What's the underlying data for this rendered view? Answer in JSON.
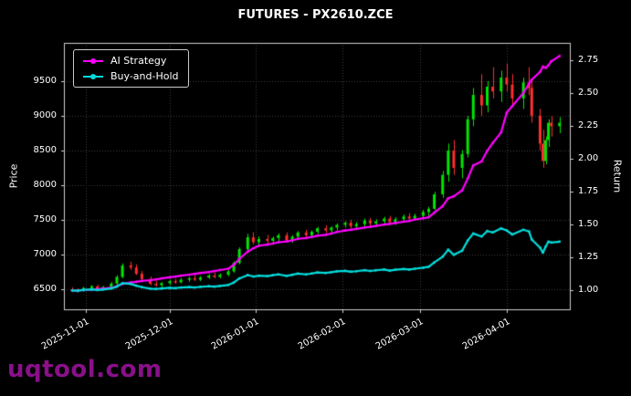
{
  "watermark": "uqtool.com",
  "chart_data": {
    "type": "candlestick+line",
    "title": "FUTURES - PX2610.ZCE",
    "ylabel_left": "Price",
    "ylabel_right": "Return",
    "grid": true,
    "legend_position": "upper-left",
    "x_tick_labels": [
      "2025-11-01",
      "2025-12-01",
      "2026-01-01",
      "2026-02-01",
      "2026-03-01",
      "2026-04-01"
    ],
    "price_ticks": [
      6500,
      7000,
      7500,
      8000,
      8500,
      9000,
      9500
    ],
    "return_ticks": [
      1.0,
      1.25,
      1.5,
      1.75,
      2.0,
      2.25,
      2.5,
      2.75
    ],
    "price_axis_range": [
      6200,
      10050
    ],
    "return_axis_range": [
      0.85,
      2.88
    ],
    "x_domain": [
      "2025-10-24",
      "2026-04-24"
    ],
    "colors": {
      "up": "#00e600",
      "down": "#ff2e2e",
      "ai": "#ff00ff",
      "bh": "#00dddd",
      "grid": "#3c3c3c",
      "spine": "#cfcfcf",
      "text": "#ffffff",
      "background": "#000000",
      "watermark": "#8a108a"
    },
    "candles": [
      [
        "2025-10-27",
        6500,
        6530,
        6470,
        6490
      ],
      [
        "2025-10-29",
        6490,
        6515,
        6455,
        6480
      ],
      [
        "2025-10-31",
        6480,
        6535,
        6465,
        6520
      ],
      [
        "2025-11-03",
        6520,
        6560,
        6495,
        6545
      ],
      [
        "2025-11-05",
        6545,
        6565,
        6490,
        6510
      ],
      [
        "2025-11-07",
        6510,
        6550,
        6495,
        6535
      ],
      [
        "2025-11-10",
        6535,
        6605,
        6520,
        6585
      ],
      [
        "2025-11-12",
        6585,
        6705,
        6565,
        6680
      ],
      [
        "2025-11-14",
        6680,
        6875,
        6660,
        6845
      ],
      [
        "2025-11-17",
        6845,
        6900,
        6780,
        6815
      ],
      [
        "2025-11-19",
        6815,
        6860,
        6705,
        6725
      ],
      [
        "2025-11-21",
        6725,
        6765,
        6625,
        6650
      ],
      [
        "2025-11-24",
        6650,
        6685,
        6560,
        6580
      ],
      [
        "2025-11-26",
        6580,
        6620,
        6540,
        6560
      ],
      [
        "2025-11-28",
        6560,
        6605,
        6530,
        6590
      ],
      [
        "2025-12-01",
        6590,
        6640,
        6560,
        6620
      ],
      [
        "2025-12-03",
        6620,
        6650,
        6580,
        6600
      ],
      [
        "2025-12-05",
        6600,
        6660,
        6590,
        6640
      ],
      [
        "2025-12-08",
        6640,
        6680,
        6610,
        6660
      ],
      [
        "2025-12-10",
        6660,
        6700,
        6620,
        6640
      ],
      [
        "2025-12-12",
        6640,
        6690,
        6620,
        6670
      ],
      [
        "2025-12-15",
        6670,
        6720,
        6650,
        6700
      ],
      [
        "2025-12-17",
        6700,
        6740,
        6660,
        6680
      ],
      [
        "2025-12-19",
        6680,
        6730,
        6660,
        6710
      ],
      [
        "2025-12-22",
        6710,
        6780,
        6690,
        6760
      ],
      [
        "2025-12-24",
        6760,
        6905,
        6740,
        6880
      ],
      [
        "2025-12-26",
        6880,
        7105,
        6860,
        7080
      ],
      [
        "2025-12-29",
        7080,
        7300,
        7050,
        7250
      ],
      [
        "2025-12-31",
        7250,
        7325,
        7150,
        7180
      ],
      [
        "2026-01-02",
        7180,
        7265,
        7120,
        7225
      ],
      [
        "2026-01-05",
        7225,
        7285,
        7160,
        7200
      ],
      [
        "2026-01-07",
        7200,
        7260,
        7150,
        7240
      ],
      [
        "2026-01-09",
        7240,
        7305,
        7200,
        7280
      ],
      [
        "2026-01-12",
        7280,
        7320,
        7180,
        7210
      ],
      [
        "2026-01-14",
        7210,
        7280,
        7170,
        7260
      ],
      [
        "2026-01-16",
        7260,
        7340,
        7230,
        7320
      ],
      [
        "2026-01-19",
        7320,
        7360,
        7250,
        7280
      ],
      [
        "2026-01-21",
        7280,
        7350,
        7240,
        7330
      ],
      [
        "2026-01-23",
        7330,
        7400,
        7300,
        7380
      ],
      [
        "2026-01-26",
        7380,
        7425,
        7310,
        7350
      ],
      [
        "2026-01-28",
        7350,
        7410,
        7320,
        7390
      ],
      [
        "2026-01-30",
        7390,
        7450,
        7350,
        7430
      ],
      [
        "2026-02-02",
        7430,
        7480,
        7390,
        7460
      ],
      [
        "2026-02-04",
        7460,
        7500,
        7380,
        7410
      ],
      [
        "2026-02-06",
        7410,
        7470,
        7360,
        7440
      ],
      [
        "2026-02-09",
        7440,
        7520,
        7400,
        7490
      ],
      [
        "2026-02-11",
        7490,
        7530,
        7420,
        7450
      ],
      [
        "2026-02-13",
        7450,
        7510,
        7410,
        7480
      ],
      [
        "2026-02-16",
        7480,
        7545,
        7430,
        7520
      ],
      [
        "2026-02-18",
        7520,
        7560,
        7440,
        7470
      ],
      [
        "2026-02-20",
        7470,
        7540,
        7430,
        7510
      ],
      [
        "2026-02-23",
        7510,
        7580,
        7470,
        7550
      ],
      [
        "2026-02-25",
        7550,
        7600,
        7480,
        7520
      ],
      [
        "2026-02-27",
        7520,
        7590,
        7490,
        7560
      ],
      [
        "2026-03-02",
        7560,
        7645,
        7520,
        7615
      ],
      [
        "2026-03-04",
        7615,
        7690,
        7545,
        7660
      ],
      [
        "2026-03-06",
        7660,
        7905,
        7640,
        7870
      ],
      [
        "2026-03-09",
        7870,
        8205,
        7820,
        8150
      ],
      [
        "2026-03-11",
        8150,
        8600,
        8050,
        8500
      ],
      [
        "2026-03-13",
        8500,
        8650,
        8150,
        8250
      ],
      [
        "2026-03-16",
        8250,
        8505,
        8100,
        8450
      ],
      [
        "2026-03-18",
        8450,
        9000,
        8400,
        8950
      ],
      [
        "2026-03-20",
        8950,
        9400,
        8850,
        9300
      ],
      [
        "2026-03-23",
        9300,
        9600,
        9000,
        9150
      ],
      [
        "2026-03-25",
        9150,
        9500,
        9050,
        9420
      ],
      [
        "2026-03-27",
        9420,
        9700,
        9250,
        9350
      ],
      [
        "2026-03-30",
        9350,
        9650,
        9200,
        9550
      ],
      [
        "2026-04-01",
        9550,
        9750,
        9350,
        9450
      ],
      [
        "2026-04-03",
        9450,
        9600,
        9150,
        9250
      ],
      [
        "2026-04-07",
        9250,
        9550,
        9100,
        9480
      ],
      [
        "2026-04-09",
        9480,
        9700,
        9300,
        9400
      ],
      [
        "2026-04-10",
        9400,
        9500,
        8900,
        9000
      ],
      [
        "2026-04-13",
        9000,
        9100,
        8500,
        8600
      ],
      [
        "2026-04-14",
        8600,
        8800,
        8250,
        8350
      ],
      [
        "2026-04-15",
        8350,
        8700,
        8300,
        8650
      ],
      [
        "2026-04-16",
        8650,
        8950,
        8550,
        8900
      ],
      [
        "2026-04-17",
        8900,
        9000,
        8700,
        8850
      ],
      [
        "2026-04-20",
        8850,
        8980,
        8750,
        8900
      ]
    ],
    "series": [
      {
        "name": "AI Strategy",
        "axis": "return",
        "color_key": "ai",
        "values": [
          1.0,
          1.0,
          1.003,
          1.006,
          1.01,
          1.014,
          1.02,
          1.032,
          1.05,
          1.06,
          1.066,
          1.072,
          1.078,
          1.084,
          1.092,
          1.1,
          1.105,
          1.112,
          1.12,
          1.126,
          1.133,
          1.14,
          1.147,
          1.155,
          1.165,
          1.195,
          1.24,
          1.295,
          1.32,
          1.34,
          1.348,
          1.356,
          1.366,
          1.372,
          1.38,
          1.392,
          1.398,
          1.406,
          1.416,
          1.422,
          1.432,
          1.444,
          1.455,
          1.46,
          1.468,
          1.478,
          1.483,
          1.49,
          1.5,
          1.505,
          1.512,
          1.522,
          1.528,
          1.538,
          1.548,
          1.556,
          1.59,
          1.64,
          1.7,
          1.715,
          1.76,
          1.85,
          1.95,
          1.98,
          2.06,
          2.12,
          2.2,
          2.35,
          2.4,
          2.5,
          2.57,
          2.6,
          2.66,
          2.7,
          2.69,
          2.71,
          2.74,
          2.78
        ]
      },
      {
        "name": "Buy-and-Hold",
        "axis": "return",
        "color_key": "bh",
        "values": [
          1.0,
          0.998,
          1.005,
          1.008,
          1.003,
          1.007,
          1.015,
          1.029,
          1.055,
          1.05,
          1.036,
          1.025,
          1.014,
          1.011,
          1.015,
          1.02,
          1.017,
          1.023,
          1.026,
          1.023,
          1.028,
          1.032,
          1.029,
          1.034,
          1.042,
          1.06,
          1.091,
          1.117,
          1.106,
          1.113,
          1.109,
          1.116,
          1.122,
          1.111,
          1.119,
          1.128,
          1.122,
          1.129,
          1.137,
          1.133,
          1.139,
          1.145,
          1.149,
          1.142,
          1.146,
          1.154,
          1.148,
          1.153,
          1.159,
          1.151,
          1.157,
          1.163,
          1.159,
          1.165,
          1.173,
          1.18,
          1.213,
          1.256,
          1.31,
          1.271,
          1.302,
          1.379,
          1.433,
          1.41,
          1.451,
          1.441,
          1.471,
          1.456,
          1.425,
          1.461,
          1.448,
          1.387,
          1.325,
          1.287,
          1.333,
          1.371,
          1.364,
          1.371
        ]
      }
    ]
  }
}
